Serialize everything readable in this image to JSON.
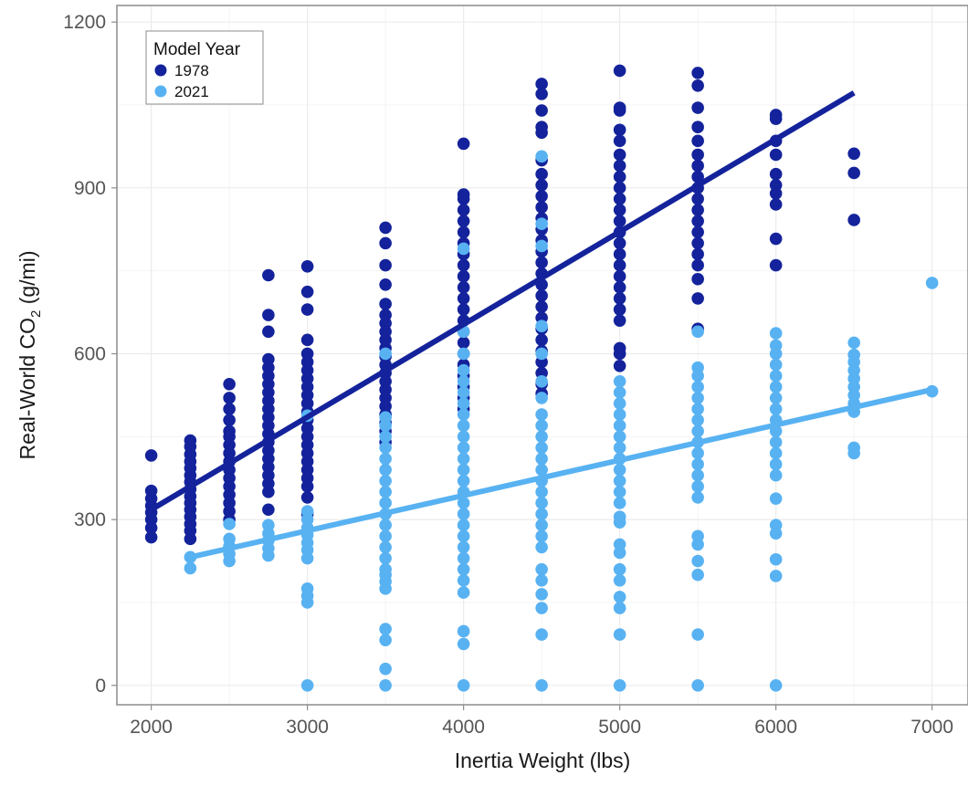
{
  "chart_data": {
    "type": "scatter",
    "xlabel": "Inertia Weight (lbs)",
    "ylabel": {
      "prefix": "Real-World CO",
      "subscript": "2",
      "suffix": " (g/mi)"
    },
    "xlim": [
      1780,
      7230
    ],
    "ylim": [
      -35,
      1230
    ],
    "x_ticks": [
      2000,
      3000,
      4000,
      5000,
      6000,
      7000
    ],
    "y_ticks": [
      0,
      300,
      600,
      900,
      1200
    ],
    "grid": true,
    "legend": {
      "title": "Model Year",
      "placement": "top-left"
    },
    "series": [
      {
        "name": "1978",
        "color": "#14239b",
        "fit_line": [
          [
            2000,
            318
          ],
          [
            6500,
            1072
          ]
        ],
        "groups": [
          {
            "x": 2000,
            "points": [
              268,
              285,
              300,
              313,
              325,
              338,
              352,
              416
            ]
          },
          {
            "x": 2250,
            "points": [
              265,
              280,
              292,
              305,
              318,
              330,
              342,
              355,
              368,
              380,
              393,
              405,
              418,
              432,
              443
            ]
          },
          {
            "x": 2500,
            "points": [
              300,
              315,
              330,
              345,
              360,
              375,
              390,
              405,
              420,
              435,
              450,
              460,
              480,
              500,
              520,
              545
            ]
          },
          {
            "x": 2750,
            "points": [
              318,
              350,
              365,
              380,
              395,
              410,
              425,
              440,
              455,
              470,
              485,
              500,
              515,
              530,
              545,
              560,
              575,
              590,
              640,
              670,
              742
            ]
          },
          {
            "x": 3000,
            "points": [
              310,
              340,
              360,
              375,
              390,
              405,
              420,
              435,
              450,
              465,
              480,
              495,
              510,
              525,
              540,
              555,
              570,
              585,
              600,
              625,
              680,
              712,
              758
            ]
          },
          {
            "x": 3500,
            "points": [
              440,
              460,
              475,
              490,
              505,
              520,
              535,
              550,
              565,
              580,
              595,
              610,
              625,
              640,
              655,
              670,
              690,
              725,
              760,
              800,
              828
            ]
          },
          {
            "x": 4000,
            "points": [
              500,
              520,
              540,
              560,
              580,
              600,
              620,
              640,
              660,
              680,
              700,
              720,
              740,
              760,
              780,
              800,
              820,
              840,
              860,
              880,
              888,
              980
            ]
          },
          {
            "x": 4500,
            "points": [
              528,
              545,
              565,
              585,
              605,
              625,
              645,
              665,
              685,
              705,
              725,
              745,
              765,
              785,
              805,
              825,
              845,
              865,
              885,
              905,
              925,
              950,
              1000,
              1010,
              1040,
              1070,
              1088
            ]
          },
          {
            "x": 5000,
            "points": [
              578,
              600,
              610,
              660,
              680,
              700,
              720,
              740,
              760,
              780,
              800,
              820,
              840,
              860,
              880,
              900,
              920,
              940,
              960,
              985,
              1005,
              1040,
              1045,
              1112
            ]
          },
          {
            "x": 5500,
            "points": [
              645,
              700,
              735,
              760,
              780,
              800,
              820,
              840,
              860,
              880,
              900,
              920,
              940,
              960,
              985,
              1010,
              1045,
              1085,
              1108
            ]
          },
          {
            "x": 6000,
            "points": [
              760,
              808,
              870,
              890,
              905,
              925,
              960,
              985,
              1025,
              1032
            ]
          },
          {
            "x": 6500,
            "points": [
              842,
              927,
              962
            ]
          }
        ]
      },
      {
        "name": "2021",
        "color": "#58b2f2",
        "fit_line": [
          [
            2250,
            232
          ],
          [
            7000,
            535
          ]
        ],
        "groups": [
          {
            "x": 2250,
            "points": [
              212,
              232
            ]
          },
          {
            "x": 2500,
            "points": [
              225,
              238,
              252,
              265,
              292
            ]
          },
          {
            "x": 2750,
            "points": [
              235,
              248,
              262,
              275,
              290
            ]
          },
          {
            "x": 3000,
            "points": [
              0,
              150,
              162,
              175,
              230,
              245,
              258,
              272,
              285,
              300,
              315,
              488
            ]
          },
          {
            "x": 3500,
            "points": [
              0,
              30,
              82,
              102,
              175,
              188,
              200,
              210,
              230,
              250,
              270,
              290,
              310,
              330,
              350,
              370,
              390,
              410,
              430,
              450,
              470,
              485,
              600
            ]
          },
          {
            "x": 4000,
            "points": [
              0,
              75,
              98,
              168,
              190,
              210,
              230,
              250,
              270,
              290,
              310,
              330,
              350,
              370,
              390,
              410,
              430,
              450,
              470,
              490,
              510,
              530,
              550,
              570,
              600,
              640,
              790
            ]
          },
          {
            "x": 4500,
            "points": [
              0,
              92,
              140,
              165,
              190,
              210,
              250,
              270,
              290,
              310,
              330,
              350,
              370,
              390,
              410,
              430,
              450,
              470,
              490,
              520,
              550,
              600,
              650,
              795,
              835,
              957
            ]
          },
          {
            "x": 5000,
            "points": [
              0,
              92,
              140,
              160,
              190,
              210,
              240,
              255,
              295,
              305,
              330,
              350,
              370,
              390,
              410,
              430,
              450,
              470,
              490,
              510,
              530,
              550
            ]
          },
          {
            "x": 5500,
            "points": [
              0,
              92,
              200,
              225,
              255,
              270,
              340,
              360,
              380,
              400,
              420,
              440,
              460,
              480,
              500,
              520,
              540,
              560,
              575,
              640
            ]
          },
          {
            "x": 6000,
            "points": [
              0,
              198,
              228,
              275,
              290,
              338,
              380,
              400,
              420,
              440,
              460,
              480,
              500,
              520,
              540,
              560,
              580,
              600,
              615,
              637
            ]
          },
          {
            "x": 6500,
            "points": [
              420,
              430,
              495,
              510,
              525,
              540,
              555,
              570,
              585,
              598,
              620
            ]
          },
          {
            "x": 7000,
            "points": [
              532,
              728
            ]
          }
        ]
      }
    ]
  }
}
